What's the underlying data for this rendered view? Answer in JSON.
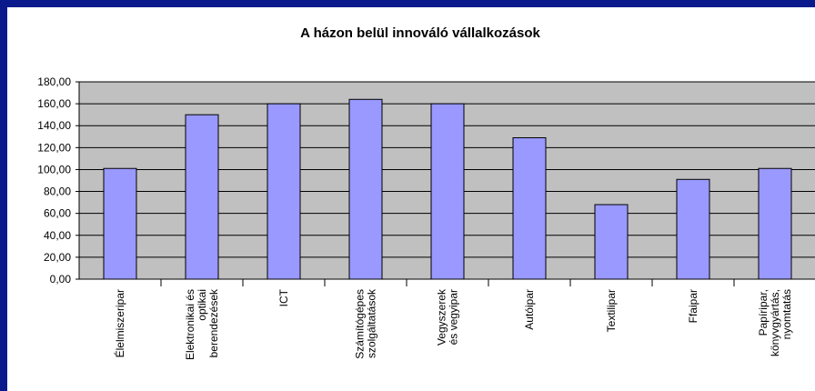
{
  "chart_data": {
    "type": "bar",
    "title": "A házon belül innováló vállalkozások",
    "categories": [
      "Élelmiszeripar",
      "Elektronikai és\noptikai\nberendezések",
      "ICT",
      "Számítógépes\nszolgáltatások",
      "Vegyszerek\nés vegyipar",
      "Autóipar",
      "Textilipar",
      "Ffaipar",
      "Papíripar,\nkönyvgyártás,\nnyomtatás"
    ],
    "values": [
      101,
      150,
      160,
      164,
      160,
      129,
      68,
      91,
      101
    ],
    "color": "#9999ff",
    "ylim": [
      0,
      180
    ],
    "yticks": [
      {
        "value": 0,
        "label": "0,00"
      },
      {
        "value": 20,
        "label": "20,00"
      },
      {
        "value": 40,
        "label": "40,00"
      },
      {
        "value": 60,
        "label": "60,00"
      },
      {
        "value": 80,
        "label": "80,00"
      },
      {
        "value": 100,
        "label": "100,00"
      },
      {
        "value": 120,
        "label": "120,00"
      },
      {
        "value": 140,
        "label": "140,00"
      },
      {
        "value": 160,
        "label": "160,00"
      },
      {
        "value": 180,
        "label": "180,00"
      }
    ],
    "grid": true
  }
}
